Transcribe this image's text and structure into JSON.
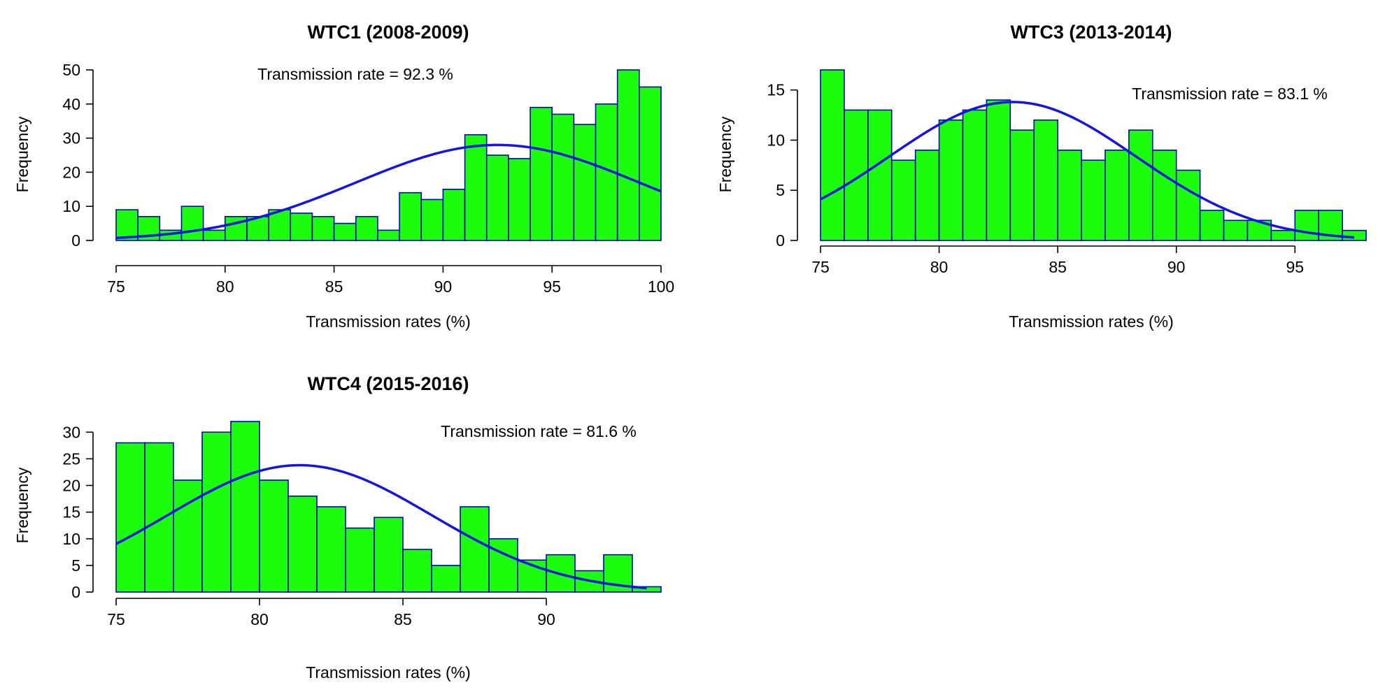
{
  "chart_data": [
    {
      "type": "bar",
      "title": "WTC1 (2008-2009)",
      "xlabel": "Transmission rates (%)",
      "ylabel": "Frequency",
      "annotation": "Transmission rate = 92.3 %",
      "bin_start": 75,
      "bin_width": 1,
      "values": [
        9,
        7,
        3,
        10,
        3,
        7,
        7,
        9,
        8,
        7,
        5,
        7,
        3,
        14,
        12,
        15,
        31,
        25,
        24,
        39,
        37,
        34,
        40,
        50,
        45
      ],
      "xlim": [
        75,
        100
      ],
      "ylim": [
        0,
        50
      ],
      "xticks": [
        75,
        80,
        85,
        90,
        95,
        100
      ],
      "yticks": [
        0,
        10,
        20,
        30,
        40,
        50
      ],
      "curve": {
        "type": "normal",
        "mean": 92.5,
        "sd": 6.5,
        "peak": 28,
        "x_range": [
          75,
          100
        ]
      }
    },
    {
      "type": "bar",
      "title": "WTC3 (2013-2014)",
      "xlabel": "Transmission rates (%)",
      "ylabel": "Frequency",
      "annotation": "Transmission rate = 83.1 %",
      "bin_start": 75,
      "bin_width": 1,
      "values": [
        17,
        13,
        13,
        8,
        9,
        12,
        13,
        14,
        11,
        12,
        9,
        8,
        9,
        11,
        9,
        7,
        3,
        2,
        2,
        1,
        3,
        3,
        1
      ],
      "xlim": [
        75,
        98
      ],
      "ylim": [
        0,
        17
      ],
      "xticks": [
        75,
        80,
        85,
        90,
        95
      ],
      "yticks": [
        0,
        5,
        10,
        15
      ],
      "curve": {
        "type": "normal",
        "mean": 83.1,
        "sd": 5.2,
        "peak": 13.8,
        "x_range": [
          75,
          97.5
        ]
      }
    },
    {
      "type": "bar",
      "title": "WTC4 (2015-2016)",
      "xlabel": "Transmission rates (%)",
      "ylabel": "Frequency",
      "annotation": "Transmission rate = 81.6 %",
      "bin_start": 75,
      "bin_width": 1,
      "values": [
        28,
        28,
        21,
        30,
        32,
        21,
        18,
        16,
        12,
        14,
        8,
        5,
        16,
        10,
        6,
        7,
        4,
        7,
        1
      ],
      "xlim": [
        75,
        94
      ],
      "ylim": [
        0,
        32
      ],
      "xticks": [
        75,
        80,
        85,
        90
      ],
      "yticks": [
        0,
        5,
        10,
        15,
        20,
        25,
        30
      ],
      "curve": {
        "type": "normal",
        "mean": 81.4,
        "sd": 4.6,
        "peak": 23.8,
        "x_range": [
          75,
          93.5
        ]
      }
    }
  ],
  "colors": {
    "bar_fill": "#1cfd0d",
    "bar_edge": "#0000cc",
    "curve": "#1414e6",
    "text": "#000000"
  }
}
